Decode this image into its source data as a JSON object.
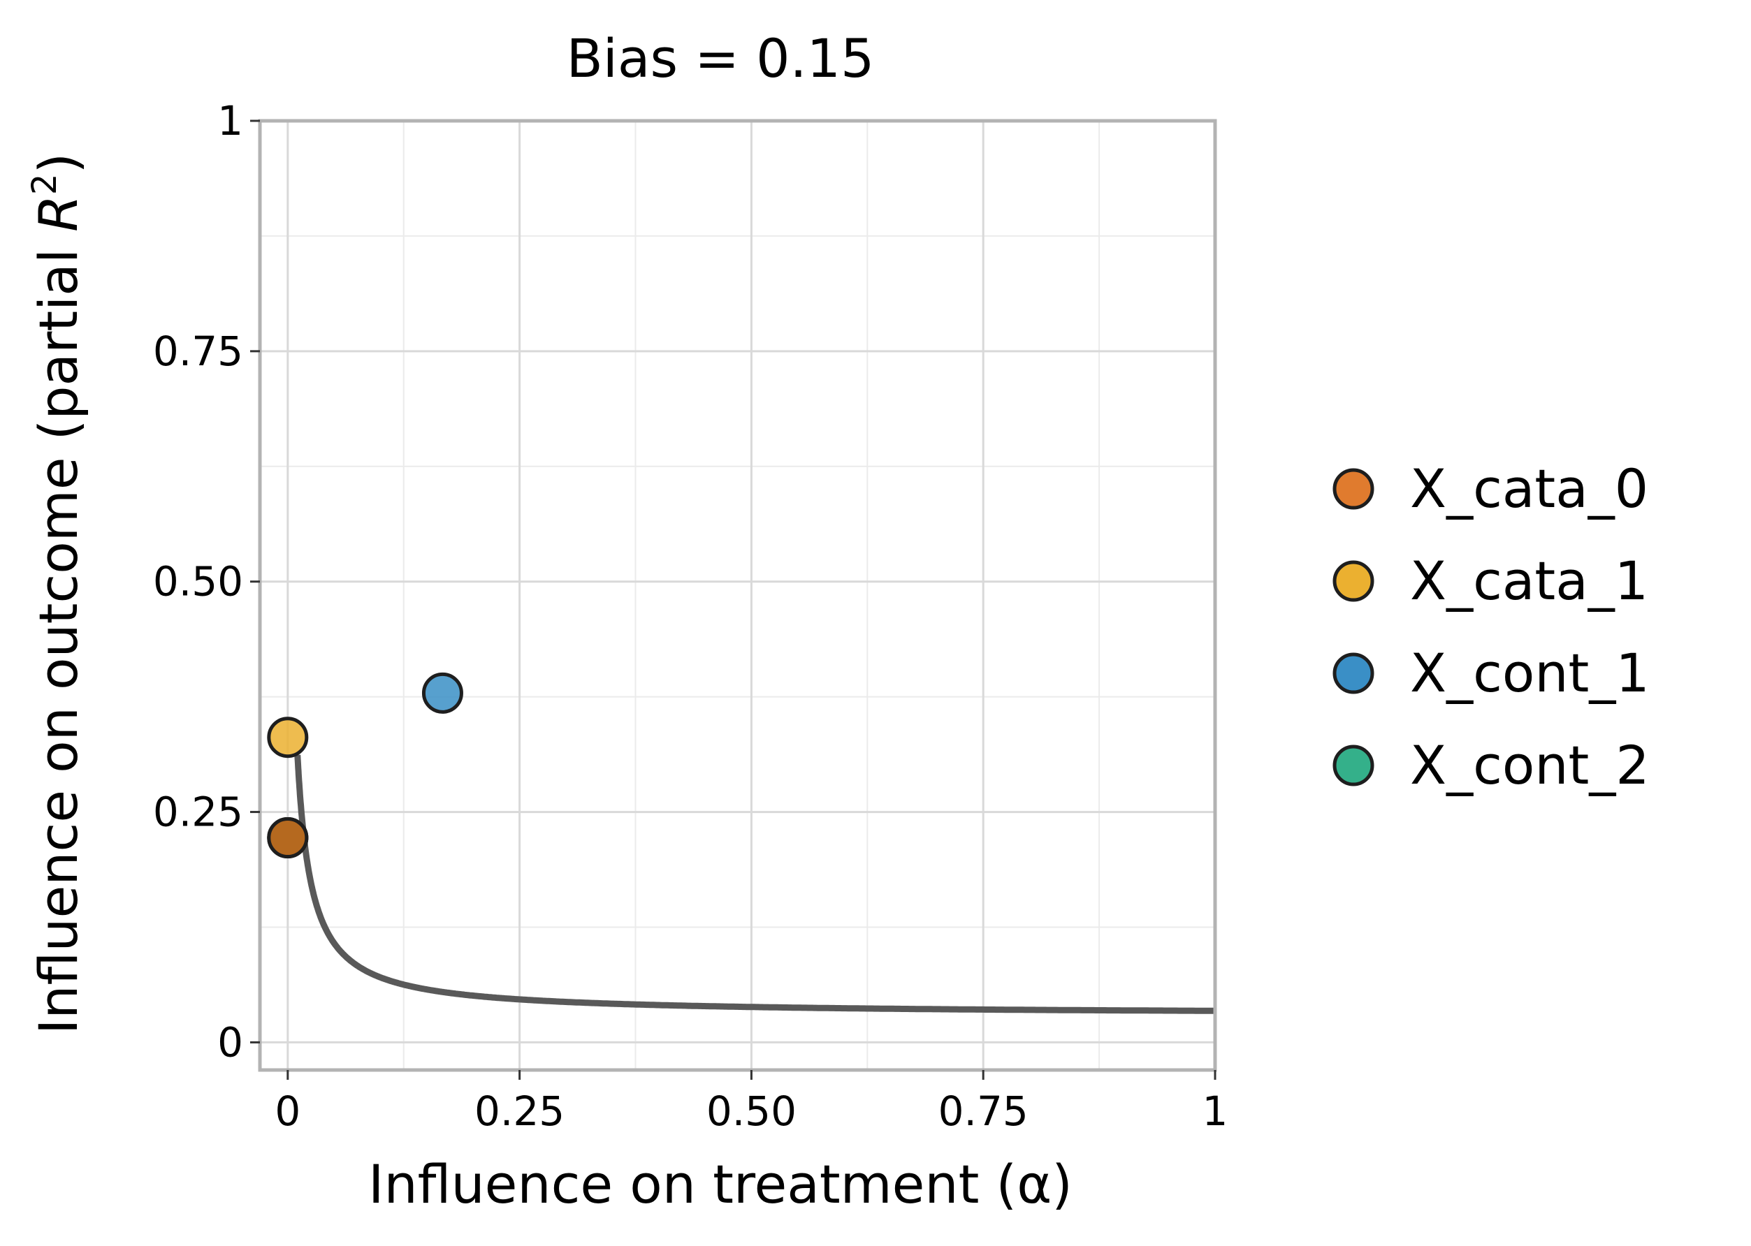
{
  "chart_data": {
    "type": "scatter",
    "title": "Bias = 0.15",
    "xlabel": "Influence on treatment (α)",
    "ylabel_main": "Influence on outcome (partial ",
    "ylabel_var": "R",
    "ylabel_sup": "2",
    "ylabel_close": ")",
    "xlim": [
      -0.03,
      1.0
    ],
    "ylim": [
      -0.03,
      1.0
    ],
    "x_ticks": [
      {
        "value": 0,
        "label": "0"
      },
      {
        "value": 0.25,
        "label": "0.25"
      },
      {
        "value": 0.5,
        "label": "0.50"
      },
      {
        "value": 0.75,
        "label": "0.75"
      },
      {
        "value": 1,
        "label": "1"
      }
    ],
    "y_ticks": [
      {
        "value": 0,
        "label": "0"
      },
      {
        "value": 0.25,
        "label": "0.25"
      },
      {
        "value": 0.5,
        "label": "0.50"
      },
      {
        "value": 0.75,
        "label": "0.75"
      },
      {
        "value": 1,
        "label": "1"
      }
    ],
    "minor_ticks": [
      0.125,
      0.375,
      0.625,
      0.875
    ],
    "grid": true,
    "legend_position": "right",
    "bias_curve": {
      "bias": 0.15,
      "color": "#595959"
    },
    "series": [
      {
        "name": "X_cata_0",
        "color": "#E07B2E",
        "points": [
          [
            0.0,
            0.222
          ]
        ]
      },
      {
        "name": "X_cata_1",
        "color": "#EBB030",
        "points": [
          [
            0.0,
            0.331
          ]
        ]
      },
      {
        "name": "X_cont_1",
        "color": "#3A8FC6",
        "points": [
          [
            0.167,
            0.379
          ]
        ]
      },
      {
        "name": "X_cont_2",
        "color": "#34B08A",
        "points": [
          [
            0.0,
            0.222
          ]
        ]
      }
    ],
    "overlap_point": {
      "color": "#B5691F",
      "x": 0.0,
      "y": 0.222
    }
  }
}
